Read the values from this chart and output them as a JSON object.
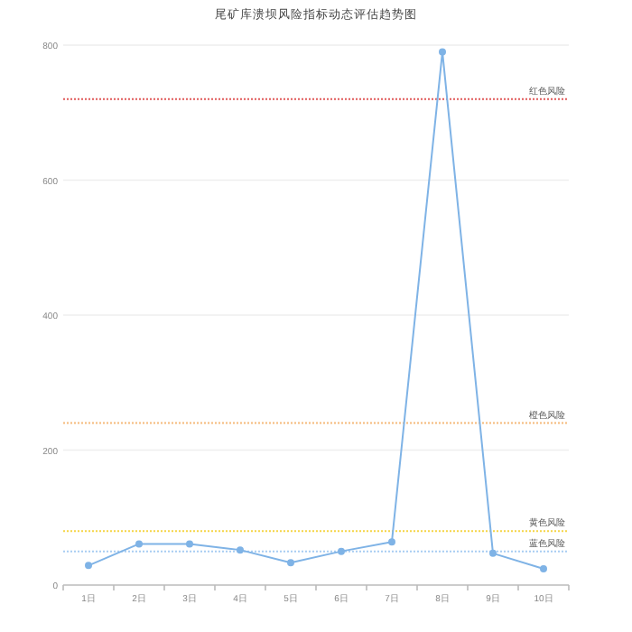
{
  "chart_data": {
    "type": "line",
    "title": "尾矿库溃坝风险指标动态评估趋势图",
    "categories": [
      "1日",
      "2日",
      "3日",
      "4日",
      "5日",
      "6日",
      "7日",
      "8日",
      "9日",
      "10日"
    ],
    "series": [
      {
        "color": "#7fb3e6",
        "values": [
          29,
          61,
          61,
          52,
          33,
          50,
          64,
          790,
          47,
          24
        ]
      }
    ],
    "ylim": [
      0,
      800
    ],
    "yticks": [
      0,
      200,
      400,
      600,
      800
    ],
    "grid": "y",
    "marker": "circle",
    "line_style": "solid",
    "ref_lines": [
      {
        "axis": "y",
        "value": 720,
        "label": "红色风险",
        "color": "#e05a5a",
        "line_style": "dotted"
      },
      {
        "axis": "y",
        "value": 240,
        "label": "橙色风险",
        "color": "#f5b97a",
        "line_style": "dotted"
      },
      {
        "axis": "y",
        "value": 80,
        "label": "黄色风险",
        "color": "#f5d547",
        "line_style": "dotted"
      },
      {
        "axis": "y",
        "value": 50,
        "label": "蓝色风险",
        "color": "#a8cdf2",
        "line_style": "dotted"
      }
    ]
  }
}
